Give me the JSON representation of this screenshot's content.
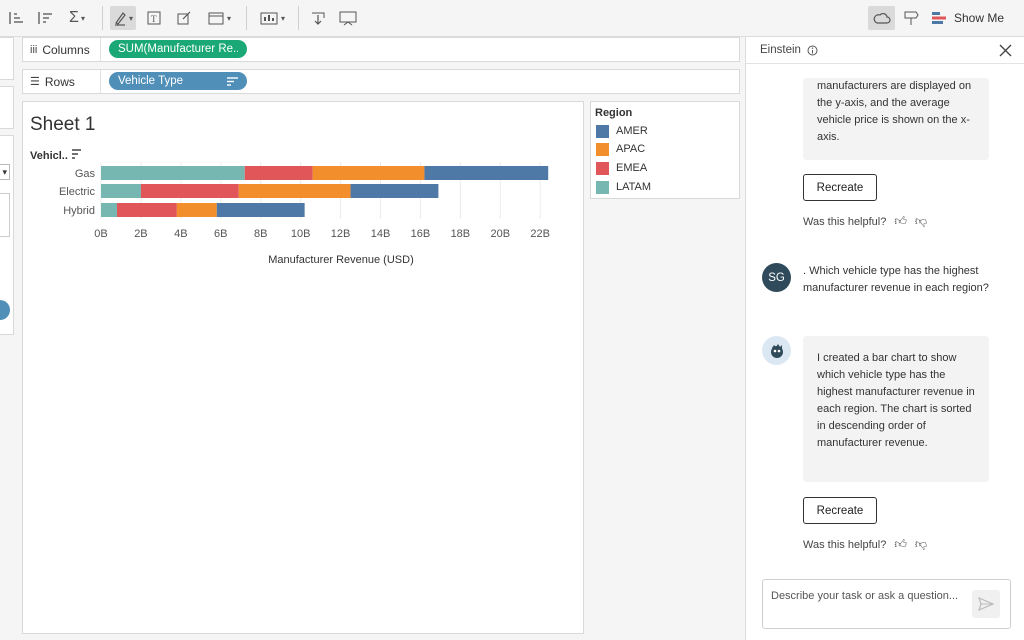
{
  "toolbar": {
    "show_me_label": "Show Me"
  },
  "shelves": {
    "columns_label": "Columns",
    "columns_pill": "SUM(Manufacturer Re...",
    "rows_label": "Rows",
    "rows_pill": "Vehicle Type"
  },
  "sheet": {
    "title": "Sheet 1"
  },
  "legend": {
    "title": "Region",
    "items": [
      {
        "label": "AMER",
        "color": "#4e79a7"
      },
      {
        "label": "APAC",
        "color": "#f28e2b"
      },
      {
        "label": "EMEA",
        "color": "#e15759"
      },
      {
        "label": "LATAM",
        "color": "#76b7b2"
      }
    ]
  },
  "chart_data": {
    "type": "bar",
    "orientation": "horizontal",
    "stacked": true,
    "row_header": "Vehicl..",
    "categories": [
      "Gas",
      "Electric",
      "Hybrid"
    ],
    "series": [
      {
        "name": "LATAM",
        "color": "#76b7b2",
        "values": [
          7.2,
          2.0,
          0.8
        ]
      },
      {
        "name": "EMEA",
        "color": "#e15759",
        "values": [
          3.4,
          4.9,
          3.0
        ]
      },
      {
        "name": "APAC",
        "color": "#f28e2b",
        "values": [
          5.6,
          5.6,
          2.0
        ]
      },
      {
        "name": "AMER",
        "color": "#4e79a7",
        "values": [
          6.2,
          4.4,
          4.4
        ]
      }
    ],
    "xticks": [
      "0B",
      "2B",
      "4B",
      "6B",
      "8B",
      "10B",
      "12B",
      "14B",
      "16B",
      "18B",
      "20B",
      "22B"
    ],
    "xlim": [
      0,
      23
    ],
    "xlabel": "Manufacturer Revenue (USD)",
    "ylabel": "",
    "grid": true
  },
  "panel": {
    "title": "Einstein",
    "msg1_tail": "manufacturers are displayed on the y-axis, and the average vehicle price is shown on the x-axis.",
    "recreate_label": "Recreate",
    "helpful_label": "Was this helpful?",
    "user_initials": "SG",
    "user_msg": ". Which vehicle type has the highest manufacturer revenue in each region?",
    "msg2": "I created a bar chart to show which vehicle type has the highest manufacturer revenue in each region. The chart is sorted in descending order of manufacturer revenue.",
    "input_placeholder": "Describe your task or ask a question..."
  },
  "colors": {
    "accent_green": "#1aa876",
    "accent_blue": "#4f8fb8",
    "avatar_dark": "#2f4a5a"
  }
}
